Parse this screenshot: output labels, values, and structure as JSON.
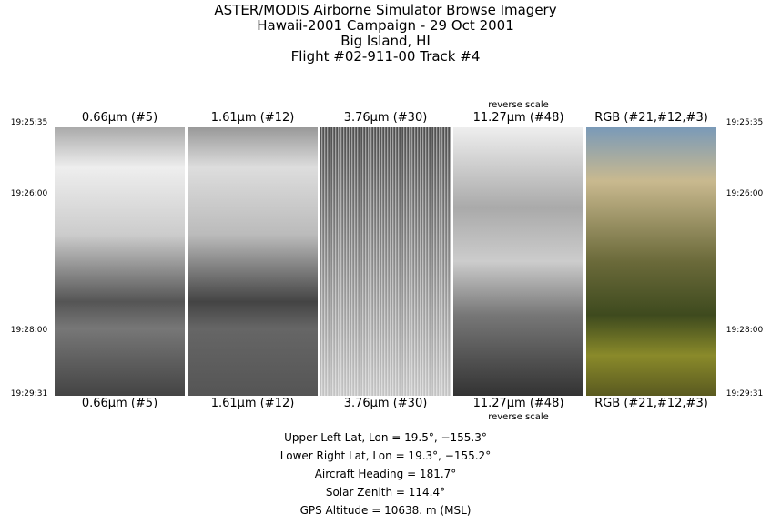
{
  "title": [
    "ASTER/MODIS Airborne Simulator Browse Imagery",
    "Hawaii-2001 Campaign - 29 Oct 2001",
    "Big Island, HI",
    "Flight #02-911-00 Track #4"
  ],
  "panels": [
    {
      "label": "0.66μm (#5)",
      "note": ""
    },
    {
      "label": "1.61μm (#12)",
      "note": ""
    },
    {
      "label": "3.76μm (#30)",
      "note": ""
    },
    {
      "label": "11.27μm (#48)",
      "note": "reverse scale"
    },
    {
      "label": "RGB (#21,#12,#3)",
      "note": ""
    }
  ],
  "times": [
    "19:25:35",
    "19:26:00",
    "19:28:00",
    "19:29:31"
  ],
  "info": [
    "Upper Left Lat, Lon =   19.5°, −155.3°",
    "Lower Right Lat, Lon =   19.3°, −155.2°",
    "Aircraft Heading =  181.7°",
    "Solar Zenith =  114.4°",
    "GPS Altitude =  10638. m (MSL)"
  ]
}
